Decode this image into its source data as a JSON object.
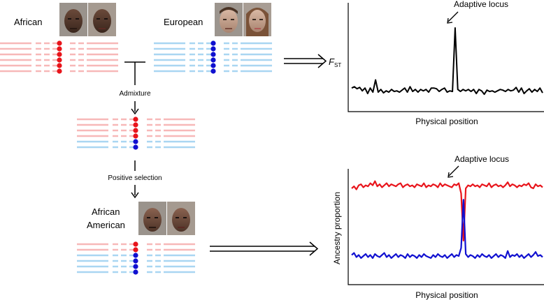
{
  "colors": {
    "african_line": "#f7b8b8",
    "african_dot": "#e8141b",
    "european_line": "#a9d6f2",
    "european_dot": "#1010d0",
    "african_trace": "#e8141b",
    "european_trace": "#1010d0",
    "fst_trace": "#000000"
  },
  "populations": {
    "african": {
      "label": "African",
      "icons": [
        "face-photo-male-icon",
        "face-photo-female-icon"
      ]
    },
    "european": {
      "label": "European",
      "icons": [
        "face-photo-male-icon",
        "face-photo-female-icon"
      ]
    },
    "african_american": {
      "label_line1": "African",
      "label_line2": "American",
      "icons": [
        "face-photo-male-icon",
        "face-photo-female-icon"
      ]
    }
  },
  "steps": {
    "admixture": "Admixture",
    "positive_selection": "Positive selection"
  },
  "haplotypes": {
    "african": [
      "african",
      "african",
      "african",
      "african",
      "african",
      "african"
    ],
    "european": [
      "european",
      "european",
      "european",
      "european",
      "european",
      "european"
    ],
    "admixed": [
      "african",
      "african",
      "african",
      "african",
      "european",
      "european"
    ],
    "african_american": [
      "african",
      "african",
      "european",
      "european",
      "european",
      "european"
    ]
  },
  "chart_data": [
    {
      "type": "line",
      "title": "",
      "xlabel": "Physical position",
      "ylabel_main": "F",
      "ylabel_sub": "ST",
      "annotation": "Adaptive locus",
      "series": [
        {
          "color_key": "fst_trace",
          "values": [
            0.12,
            0.14,
            0.11,
            0.13,
            0.08,
            0.12,
            0.04,
            0.12,
            0.06,
            0.24,
            0.06,
            0.1,
            0.05,
            0.08,
            0.06,
            0.1,
            0.07,
            0.08,
            0.06,
            0.09,
            0.12,
            0.06,
            0.14,
            0.07,
            0.1,
            0.06,
            0.1,
            0.08,
            0.1,
            0.06,
            0.12,
            0.12,
            0.11,
            0.07,
            0.1,
            0.12,
            0.06,
            0.08,
            0.07,
            1.0,
            0.1,
            0.07,
            0.1,
            0.08,
            0.1,
            0.07,
            0.1,
            0.04,
            0.1,
            0.08,
            0.03,
            0.09,
            0.07,
            0.08,
            0.06,
            0.08,
            0.1,
            0.09,
            0.07,
            0.1,
            0.08,
            0.09,
            0.13,
            0.06,
            0.12,
            0.04,
            0.08,
            0.11,
            0.06,
            0.1,
            0.07,
            0.12,
            0.05
          ]
        }
      ]
    },
    {
      "type": "line",
      "title": "",
      "xlabel": "Physical position",
      "ylabel": "Ancestry proportion",
      "annotation": "Adaptive locus",
      "series": [
        {
          "color_key": "african_trace",
          "values": [
            0.83,
            0.85,
            0.82,
            0.86,
            0.87,
            0.84,
            0.86,
            0.85,
            0.88,
            0.86,
            0.9,
            0.85,
            0.87,
            0.84,
            0.86,
            0.88,
            0.85,
            0.87,
            0.86,
            0.85,
            0.87,
            0.88,
            0.84,
            0.86,
            0.87,
            0.85,
            0.86,
            0.84,
            0.87,
            0.86,
            0.85,
            0.88,
            0.84,
            0.86,
            0.85,
            0.87,
            0.86,
            0.84,
            0.88,
            0.85,
            0.87,
            0.86,
            0.85,
            0.84,
            0.87,
            0.86,
            0.88,
            0.78,
            0.32,
            0.83,
            0.86,
            0.85,
            0.87,
            0.85,
            0.86,
            0.84,
            0.87,
            0.86,
            0.85,
            0.88,
            0.84,
            0.86,
            0.87,
            0.85,
            0.86,
            0.84,
            0.86,
            0.89,
            0.85,
            0.87,
            0.86,
            0.84,
            0.86,
            0.85,
            0.87,
            0.86,
            0.88,
            0.84,
            0.83,
            0.87,
            0.85,
            0.86,
            0.84
          ]
        },
        {
          "color_key": "european_trace",
          "values": [
            0.18,
            0.2,
            0.16,
            0.18,
            0.15,
            0.17,
            0.19,
            0.16,
            0.18,
            0.15,
            0.19,
            0.17,
            0.16,
            0.18,
            0.2,
            0.16,
            0.18,
            0.15,
            0.17,
            0.19,
            0.16,
            0.18,
            0.17,
            0.15,
            0.19,
            0.16,
            0.18,
            0.17,
            0.15,
            0.18,
            0.16,
            0.19,
            0.17,
            0.16,
            0.15,
            0.18,
            0.16,
            0.19,
            0.17,
            0.16,
            0.18,
            0.15,
            0.17,
            0.19,
            0.16,
            0.18,
            0.17,
            0.25,
            0.72,
            0.19,
            0.16,
            0.18,
            0.17,
            0.15,
            0.18,
            0.16,
            0.19,
            0.17,
            0.16,
            0.18,
            0.15,
            0.17,
            0.19,
            0.16,
            0.18,
            0.17,
            0.15,
            0.22,
            0.16,
            0.18,
            0.17,
            0.19,
            0.16,
            0.18,
            0.15,
            0.17,
            0.19,
            0.16,
            0.18,
            0.21,
            0.17,
            0.18,
            0.16
          ]
        }
      ]
    }
  ]
}
